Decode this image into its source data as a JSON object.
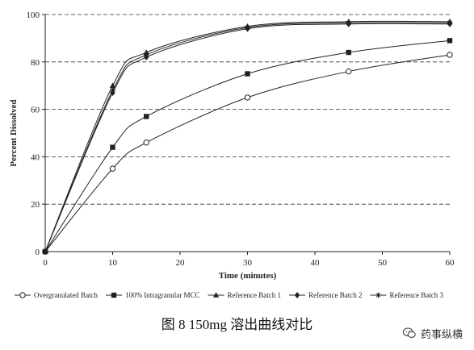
{
  "chart_data": {
    "type": "line",
    "title": "",
    "xlabel": "Time (minutes)",
    "ylabel": "Percent Dissolved",
    "xlim": [
      0,
      60
    ],
    "ylim": [
      0,
      100
    ],
    "xticks": [
      0,
      10,
      20,
      30,
      40,
      50,
      60
    ],
    "yticks": [
      0,
      20,
      40,
      60,
      80,
      100
    ],
    "grid": "horizontal-dashed",
    "legend_position": "bottom",
    "series": [
      {
        "name": "Overgranulated Batch",
        "marker": "circle-open",
        "x": [
          0,
          10,
          15,
          30,
          45,
          60
        ],
        "y": [
          0,
          35,
          46,
          65,
          76,
          83
        ]
      },
      {
        "name": "100% Intragranular MCC",
        "marker": "square-filled",
        "x": [
          0,
          10,
          15,
          30,
          45,
          60
        ],
        "y": [
          0,
          44,
          57,
          75,
          84,
          89
        ]
      },
      {
        "name": "Reference Batch 1",
        "marker": "triangle-filled",
        "x": [
          0,
          10,
          15,
          30,
          45,
          60
        ],
        "y": [
          0,
          70,
          84,
          95,
          97,
          97
        ]
      },
      {
        "name": "Reference Batch 2",
        "marker": "diamond-filled",
        "x": [
          0,
          10,
          15,
          30,
          45,
          60
        ],
        "y": [
          0,
          67,
          82,
          94,
          96,
          96
        ]
      },
      {
        "name": "Reference Batch 3",
        "marker": "asterisk",
        "x": [
          0,
          10,
          15,
          30,
          45,
          60
        ],
        "y": [
          0,
          68,
          83,
          94.5,
          96.5,
          96.5
        ]
      }
    ]
  },
  "caption": "图 8 150mg 溶出曲线对比",
  "watermark": {
    "icon": "wechat-icon",
    "text": "药事纵横"
  },
  "colors": {
    "line": "#222222",
    "grid": "#333333",
    "axis": "#222222"
  }
}
